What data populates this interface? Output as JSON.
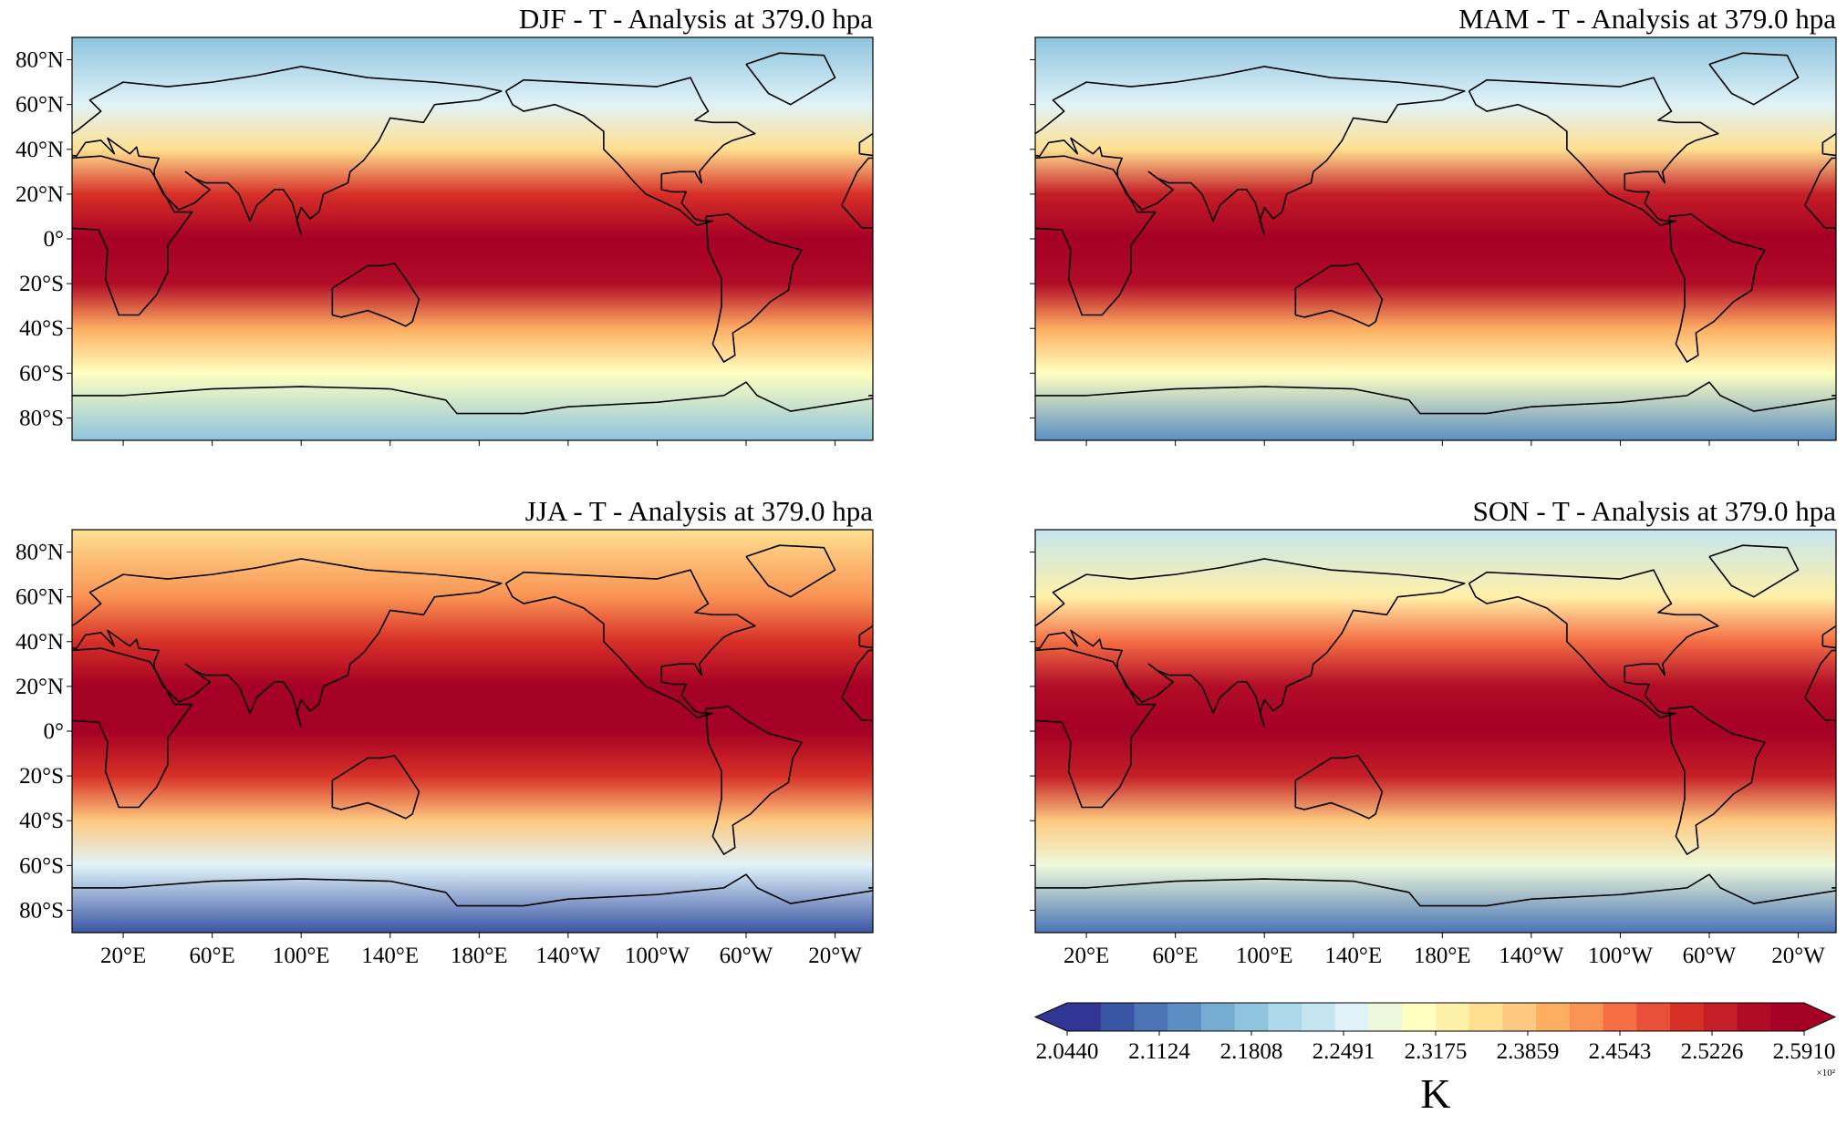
{
  "panels": [
    {
      "title": "DJF - T - Analysis at 379.0 hpa"
    },
    {
      "title": "MAM - T - Analysis at 379.0 hpa"
    },
    {
      "title": "JJA - T - Analysis at 379.0 hpa"
    },
    {
      "title": "SON - T - Analysis at 379.0 hpa"
    }
  ],
  "yticks": [
    "80°N",
    "60°N",
    "40°N",
    "20°N",
    "0°",
    "20°S",
    "40°S",
    "60°S",
    "80°S"
  ],
  "xticks": [
    "20°E",
    "60°E",
    "100°E",
    "140°E",
    "180°E",
    "140°W",
    "100°W",
    "60°W",
    "20°W"
  ],
  "colorbar": {
    "ticks": [
      "2.0440",
      "2.1124",
      "2.1808",
      "2.2491",
      "2.3175",
      "2.3859",
      "2.4543",
      "2.5226",
      "2.5910"
    ],
    "multiplier": "×10²",
    "label": "K",
    "colors": [
      "#313695",
      "#3a54a4",
      "#4a74b4",
      "#5b8fc4",
      "#74add1",
      "#8ec4de",
      "#abd9e9",
      "#c5e6f0",
      "#e0f3f8",
      "#eef9db",
      "#ffffbf",
      "#fff0a8",
      "#fee090",
      "#fdc980",
      "#fdae61",
      "#f99354",
      "#f46d43",
      "#e85037",
      "#d73027",
      "#c41e27",
      "#b10c27",
      "#a50026"
    ]
  }
}
